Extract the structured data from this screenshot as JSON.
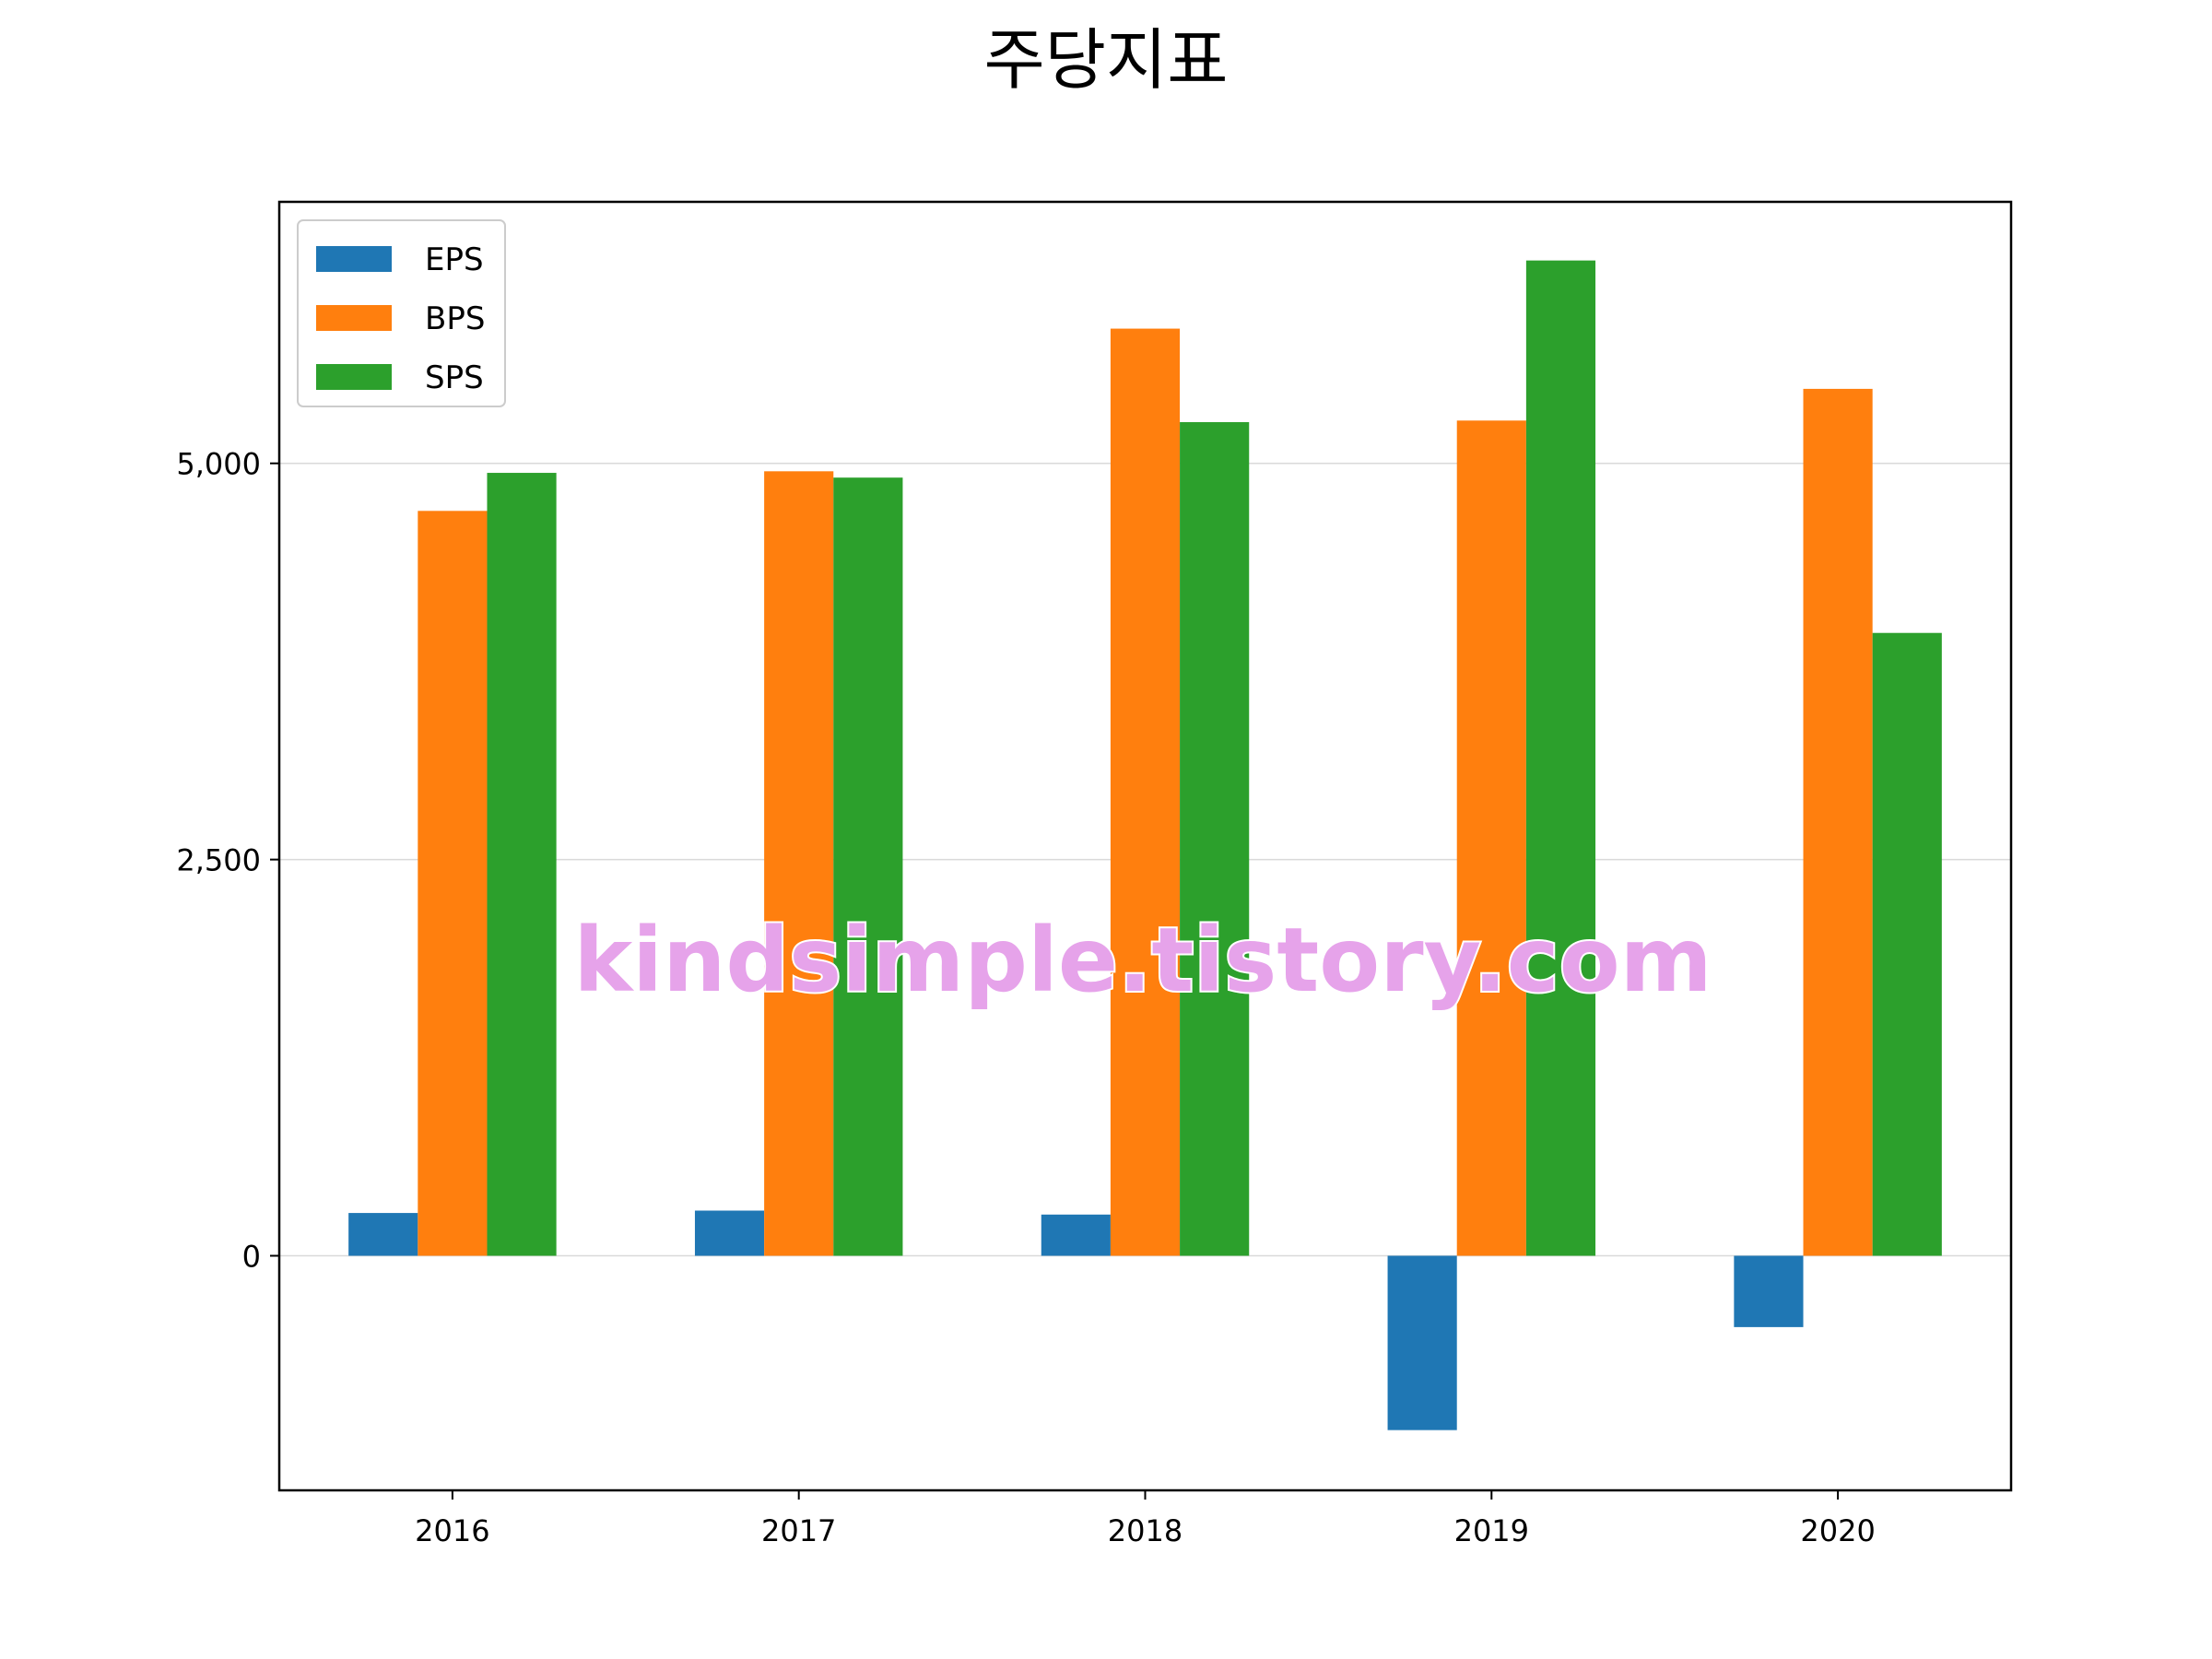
{
  "chart_data": {
    "type": "bar",
    "title": "주당지표",
    "categories": [
      "2016",
      "2017",
      "2018",
      "2019",
      "2020"
    ],
    "series": [
      {
        "name": "EPS",
        "color": "#1f77b4",
        "values": [
          270,
          285,
          260,
          -1100,
          -450
        ]
      },
      {
        "name": "BPS",
        "color": "#ff7f0e",
        "values": [
          4700,
          4950,
          5850,
          5270,
          5470
        ]
      },
      {
        "name": "SPS",
        "color": "#2ca02c",
        "values": [
          4940,
          4910,
          5260,
          6280,
          3930
        ]
      }
    ],
    "yticks": [
      0,
      2500,
      5000
    ],
    "ytick_labels": [
      "0",
      "2,500",
      "5,000"
    ],
    "ylim": [
      -1480,
      6650
    ],
    "grid": "horizontal",
    "legend_placement": "top-left",
    "watermark": "kindsimple.tistory.com",
    "watermark_color": "#e6a3ea"
  }
}
